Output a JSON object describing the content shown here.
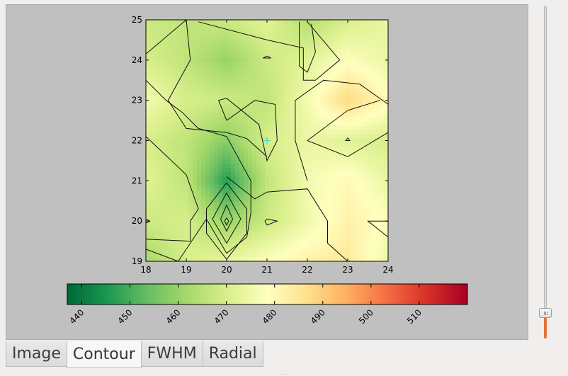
{
  "tabs": [
    {
      "label": "Image",
      "active": false
    },
    {
      "label": "Contour",
      "active": true
    },
    {
      "label": "FWHM",
      "active": false
    },
    {
      "label": "Radial",
      "active": false
    }
  ],
  "chart_data": {
    "type": "heatmap",
    "x_ticks": [
      "18",
      "19",
      "20",
      "21",
      "22",
      "23",
      "24"
    ],
    "y_ticks": [
      "19",
      "20",
      "21",
      "22",
      "23",
      "24",
      "25"
    ],
    "xlim": [
      18,
      24
    ],
    "ylim": [
      19,
      25
    ],
    "grid": [
      [
        462,
        470,
        474,
        478,
        482,
        484,
        474
      ],
      [
        468,
        470,
        460,
        468,
        475,
        482,
        478
      ],
      [
        472,
        466,
        446,
        466,
        476,
        480,
        474
      ],
      [
        470,
        466,
        458,
        470,
        474,
        472,
        470
      ],
      [
        476,
        470,
        468,
        466,
        476,
        488,
        480
      ],
      [
        470,
        466,
        460,
        468,
        472,
        478,
        474
      ],
      [
        468,
        466,
        468,
        472,
        464,
        470,
        474
      ]
    ],
    "colorbar": {
      "ticks": [
        "440",
        "450",
        "460",
        "470",
        "480",
        "490",
        "500",
        "510"
      ],
      "range": [
        437,
        520
      ],
      "colors": [
        "#006837",
        "#1a9850",
        "#66bd63",
        "#a6d96a",
        "#d9ef8b",
        "#ffffbf",
        "#fee08b",
        "#fdae61",
        "#f46d43",
        "#d73027",
        "#a50026"
      ]
    },
    "marker_color": "#40e0d0",
    "slider_level": 0.05,
    "slider_color": "#e8703a"
  }
}
